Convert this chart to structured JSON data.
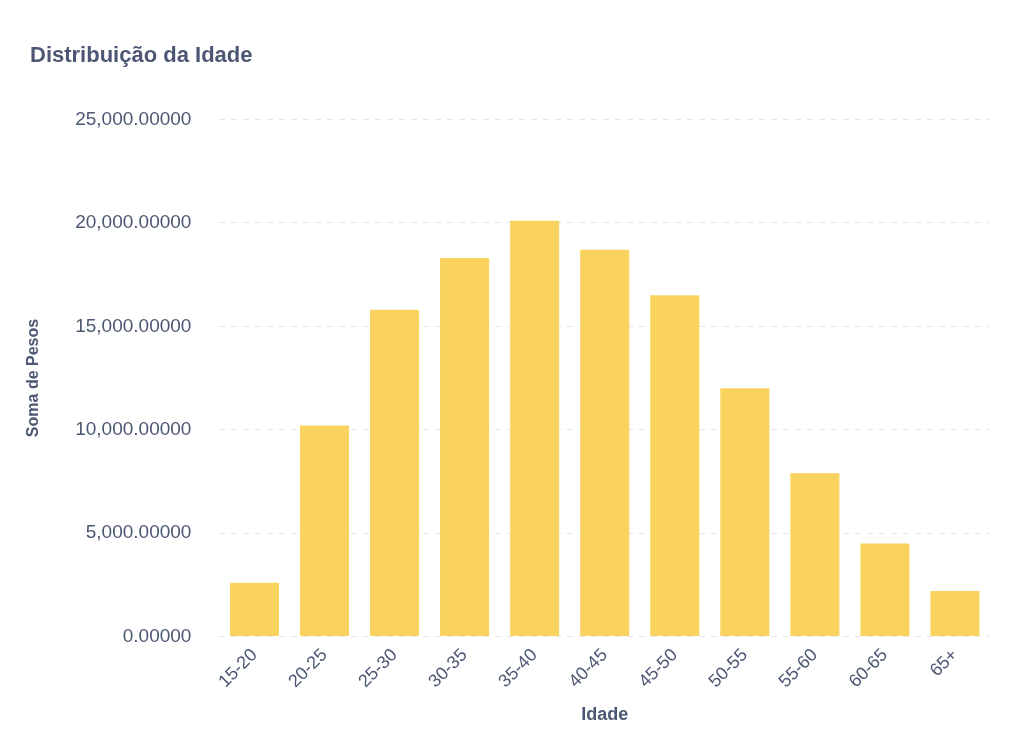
{
  "chart_data": {
    "type": "bar",
    "title": "Distribuição da Idade",
    "xlabel": "Idade",
    "ylabel": "Soma de Pesos",
    "categories": [
      "15-20",
      "20-25",
      "25-30",
      "30-35",
      "35-40",
      "40-45",
      "45-50",
      "50-55",
      "55-60",
      "60-65",
      "65+"
    ],
    "values": [
      2600,
      10200,
      15800,
      18300,
      20100,
      18700,
      16500,
      12000,
      7900,
      4500,
      2200
    ],
    "color": "#f9d35e",
    "ylim": [
      0,
      25000
    ],
    "yticks": [
      {
        "value": 0,
        "label": "0.00000"
      },
      {
        "value": 5000,
        "label": "5,000.00000"
      },
      {
        "value": 10000,
        "label": "10,000.00000"
      },
      {
        "value": 15000,
        "label": "15,000.00000"
      },
      {
        "value": 20000,
        "label": "20,000.00000"
      },
      {
        "value": 25000,
        "label": "25,000.00000"
      }
    ],
    "grid": "y",
    "legend": false
  }
}
